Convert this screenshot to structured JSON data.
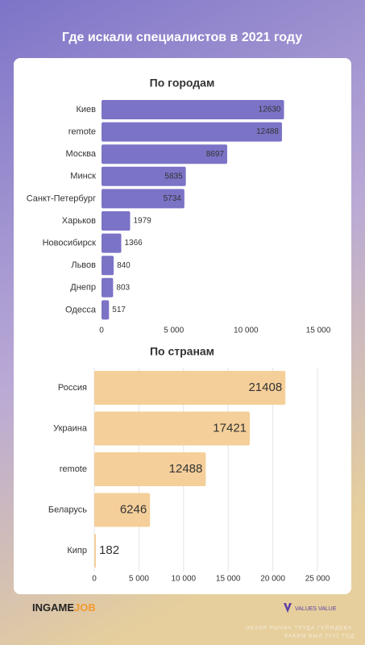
{
  "title": "Где искали специалистов в 2021 году",
  "chart_data": [
    {
      "type": "hbar",
      "title": "По городам",
      "categories": [
        "Киев",
        "remote",
        "Москва",
        "Минск",
        "Санкт-Петербург",
        "Харьков",
        "Новосибирск",
        "Львов",
        "Днепр",
        "Одесса"
      ],
      "values": [
        12630,
        12488,
        8697,
        5835,
        5734,
        1979,
        1366,
        840,
        803,
        517
      ],
      "color": "#7b73c6",
      "grid": false,
      "xlim": [
        0,
        15000
      ],
      "xticks": [
        0,
        {
          "value": 5000,
          "label": "5 000"
        },
        {
          "value": 10000,
          "label": "10 000"
        },
        {
          "value": 15000,
          "label": "15 000"
        }
      ]
    },
    {
      "type": "hbar",
      "title": "По странам",
      "categories": [
        "Россия",
        "Украина",
        "remote",
        "Беларусь",
        "Кипр"
      ],
      "values": [
        21408,
        17421,
        12488,
        6246,
        182
      ],
      "color": "#f5cf9a",
      "grid": true,
      "xlim": [
        0,
        25000
      ],
      "xticks": [
        0,
        {
          "value": 5000,
          "label": "5 000"
        },
        {
          "value": 10000,
          "label": "10 000"
        },
        {
          "value": 15000,
          "label": "15 000"
        },
        {
          "value": 20000,
          "label": "20 000"
        },
        {
          "value": 25000,
          "label": "25 000"
        }
      ]
    }
  ],
  "footer": {
    "brand_a": "INGAME",
    "brand_b": "JOB",
    "partner": "VALUES VALUE",
    "caption_1": "ОБЗОР РЫНКА ТРУДА ГЕЙМДЕВА:",
    "caption_2": "КАКИМ БЫЛ 2021 ГОД"
  }
}
